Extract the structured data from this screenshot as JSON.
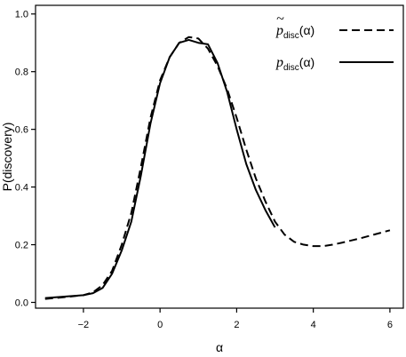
{
  "chart_data": {
    "type": "line",
    "xlabel": "α",
    "ylabel": "P(discovery)",
    "xlim": [
      -3.25,
      6.35
    ],
    "ylim": [
      -0.02,
      1.03
    ],
    "xticks": [
      -2,
      0,
      2,
      4,
      6
    ],
    "xtick_labels": [
      "−2",
      "0",
      "2",
      "4",
      "6"
    ],
    "yticks": [
      0.0,
      0.2,
      0.4,
      0.6,
      0.8,
      1.0
    ],
    "ytick_labels": [
      "0.0",
      "0.2",
      "0.4",
      "0.6",
      "0.8",
      "1.0"
    ],
    "grid": false,
    "legend_position": "top-right",
    "series": [
      {
        "name": "p̃disc(α)",
        "legend": {
          "base": "p",
          "tilde": "~",
          "sub": "disc",
          "arg": "(α)"
        },
        "style": "dashed",
        "x": [
          -3.0,
          -2.5,
          -2.0,
          -1.75,
          -1.5,
          -1.25,
          -1.0,
          -0.75,
          -0.5,
          -0.25,
          0.0,
          0.25,
          0.5,
          0.75,
          1.0,
          1.25,
          1.5,
          1.75,
          2.0,
          2.25,
          2.5,
          2.75,
          3.0,
          3.25,
          3.5,
          3.75,
          4.0,
          4.25,
          4.5,
          4.75,
          5.0,
          5.25,
          5.5,
          5.75,
          6.0
        ],
        "y": [
          0.012,
          0.018,
          0.025,
          0.035,
          0.06,
          0.11,
          0.2,
          0.31,
          0.47,
          0.64,
          0.77,
          0.85,
          0.9,
          0.92,
          0.915,
          0.88,
          0.82,
          0.74,
          0.64,
          0.53,
          0.43,
          0.35,
          0.28,
          0.235,
          0.21,
          0.2,
          0.195,
          0.195,
          0.2,
          0.207,
          0.215,
          0.223,
          0.232,
          0.241,
          0.25
        ]
      },
      {
        "name": "pdisc(α)",
        "legend": {
          "base": "p",
          "tilde": "",
          "sub": "disc",
          "arg": "(α)"
        },
        "style": "solid",
        "x": [
          -3.0,
          -2.5,
          -2.0,
          -1.75,
          -1.5,
          -1.25,
          -1.0,
          -0.75,
          -0.5,
          -0.25,
          0.0,
          0.25,
          0.5,
          0.75,
          1.0,
          1.25,
          1.5,
          1.75,
          2.0,
          2.25,
          2.5,
          2.75,
          3.0
        ],
        "y": [
          0.015,
          0.02,
          0.025,
          0.032,
          0.05,
          0.1,
          0.18,
          0.28,
          0.44,
          0.62,
          0.76,
          0.85,
          0.9,
          0.91,
          0.9,
          0.895,
          0.83,
          0.73,
          0.6,
          0.48,
          0.39,
          0.32,
          0.26
        ]
      }
    ]
  }
}
